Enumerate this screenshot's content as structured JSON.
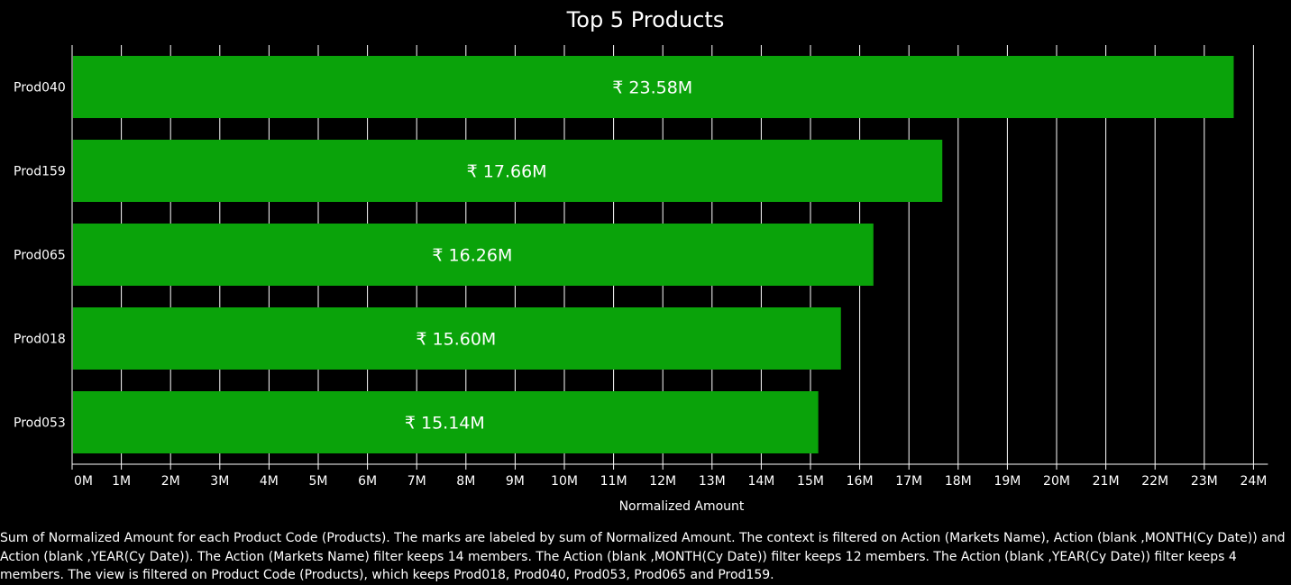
{
  "chart_data": {
    "type": "bar",
    "orientation": "horizontal",
    "title": "Top 5 Products",
    "xlabel": "Normalized Amount",
    "ylabel": "",
    "categories": [
      "Prod040",
      "Prod159",
      "Prod065",
      "Prod018",
      "Prod053"
    ],
    "values": [
      23.58,
      17.66,
      16.26,
      15.6,
      15.14
    ],
    "value_unit": "M",
    "data_labels": [
      "₹ 23.58M",
      "₹ 17.66M",
      "₹ 16.26M",
      "₹ 15.60M",
      "₹ 15.14M"
    ],
    "xlim": [
      0,
      24
    ],
    "x_ticks": [
      0,
      1,
      2,
      3,
      4,
      5,
      6,
      7,
      8,
      9,
      10,
      11,
      12,
      13,
      14,
      15,
      16,
      17,
      18,
      19,
      20,
      21,
      22,
      23,
      24
    ],
    "x_tick_labels": [
      "0M",
      "1M",
      "2M",
      "3M",
      "4M",
      "5M",
      "6M",
      "7M",
      "8M",
      "9M",
      "10M",
      "11M",
      "12M",
      "13M",
      "14M",
      "15M",
      "16M",
      "17M",
      "18M",
      "19M",
      "20M",
      "21M",
      "22M",
      "23M",
      "24M"
    ],
    "grid": "vertical",
    "colors": {
      "bar": "#0aa30a",
      "background": "#000000",
      "grid": "#ffffff",
      "text": "#ffffff"
    }
  },
  "caption": "Sum of Normalized Amount for each Product Code (Products).  The marks are labeled by sum of Normalized Amount. The context is filtered on Action (Markets Name), Action (blank ,MONTH(Cy Date)) and Action (blank ,YEAR(Cy Date)). The Action (Markets Name) filter keeps 14 members. The Action (blank ,MONTH(Cy Date)) filter keeps 12 members. The Action (blank ,YEAR(Cy Date)) filter keeps 4 members. The view is filtered on Product Code (Products), which keeps Prod018, Prod040, Prod053, Prod065 and Prod159."
}
